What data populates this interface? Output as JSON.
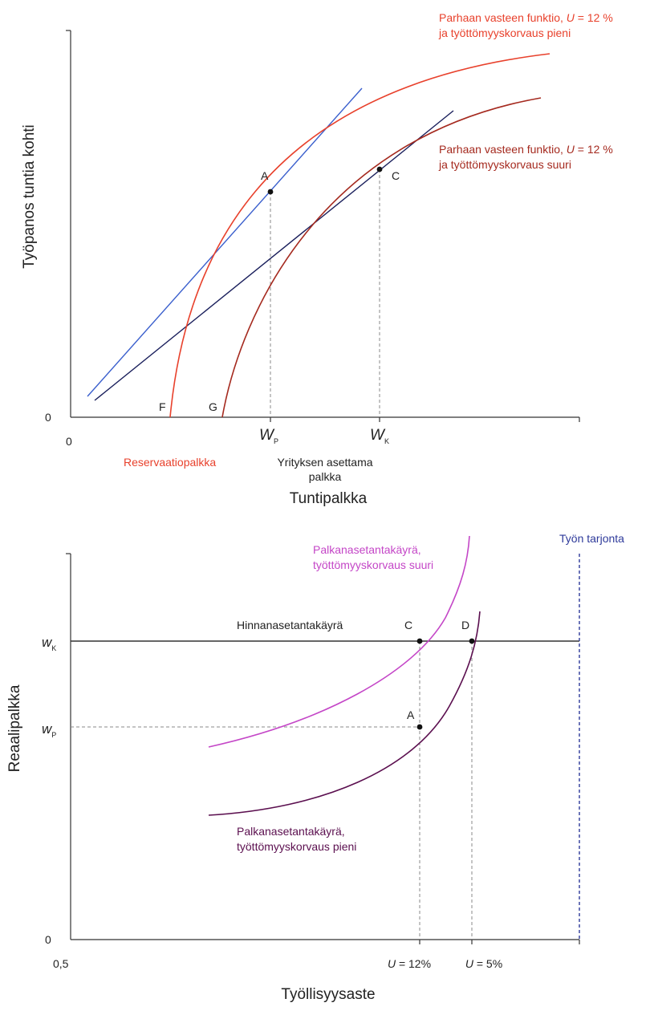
{
  "colors": {
    "axis": "#333333",
    "red": "#e8412c",
    "darkred": "#a52a1f",
    "blue": "#3a5fcd",
    "navy": "#1a1f5c",
    "magenta": "#c446c7",
    "purple": "#5b0f4f",
    "supply": "#2e3a9a",
    "guide": "#888888",
    "text": "#222222"
  },
  "chart_data": [
    {
      "type": "line",
      "title": "",
      "xlabel": "Tuntipalkka",
      "ylabel": "Työpanos tuntia kohti",
      "x_origin_label": "0",
      "y_origin_label": "0",
      "x_ticks": [
        {
          "id": "wp",
          "main": "W",
          "sub": "P"
        },
        {
          "id": "wk",
          "main": "W",
          "sub": "K"
        }
      ],
      "under_axis_labels": {
        "reservation": "Reservaatiopalkka",
        "firm_line1": "Yrityksen asettama",
        "firm_line2": "palkka"
      },
      "series": [
        {
          "name": "best_response_low",
          "label_line1_pre": "Parhaan vasteen funktio, ",
          "label_line1_u": "U",
          "label_line1_post": " = 12 %",
          "label_line2": "ja työttömyyskorvaus pieni"
        },
        {
          "name": "best_response_high",
          "label_line1_pre": "Parhaan vasteen funktio, ",
          "label_line1_u": "U",
          "label_line1_post": " = 12 %",
          "label_line2": "ja työttömyyskorvaus suuri"
        },
        {
          "name": "isocost_steep"
        },
        {
          "name": "isocost_flat"
        }
      ],
      "points": {
        "A": "A",
        "C": "C",
        "F": "F",
        "G": "G"
      }
    },
    {
      "type": "line",
      "title": "",
      "xlabel": "Työllisyysaste",
      "ylabel": "Reaalipalkka",
      "x_origin_label": "0,5",
      "y_origin_label": "0",
      "y_ticks": [
        {
          "id": "wk",
          "main": "w",
          "sub": "K"
        },
        {
          "id": "wp",
          "main": "w",
          "sub": "P"
        }
      ],
      "x_ticks": [
        {
          "id": "u12",
          "u": "U",
          "rest": " = 12%"
        },
        {
          "id": "u5",
          "u": "U",
          "rest": " = 5%"
        }
      ],
      "series": [
        {
          "name": "price_setting",
          "label": "Hinnanasetantakäyrä"
        },
        {
          "name": "wage_setting_high",
          "label_line1": "Palkanasetantakäyrä,",
          "label_line2": "työttömyyskorvaus suuri"
        },
        {
          "name": "wage_setting_low",
          "label_line1": "Palkanasetantakäyrä,",
          "label_line2": "työttömyyskorvaus pieni"
        },
        {
          "name": "labour_supply",
          "label": "Työn tarjonta"
        }
      ],
      "points": {
        "A": "A",
        "C": "C",
        "D": "D"
      }
    }
  ]
}
